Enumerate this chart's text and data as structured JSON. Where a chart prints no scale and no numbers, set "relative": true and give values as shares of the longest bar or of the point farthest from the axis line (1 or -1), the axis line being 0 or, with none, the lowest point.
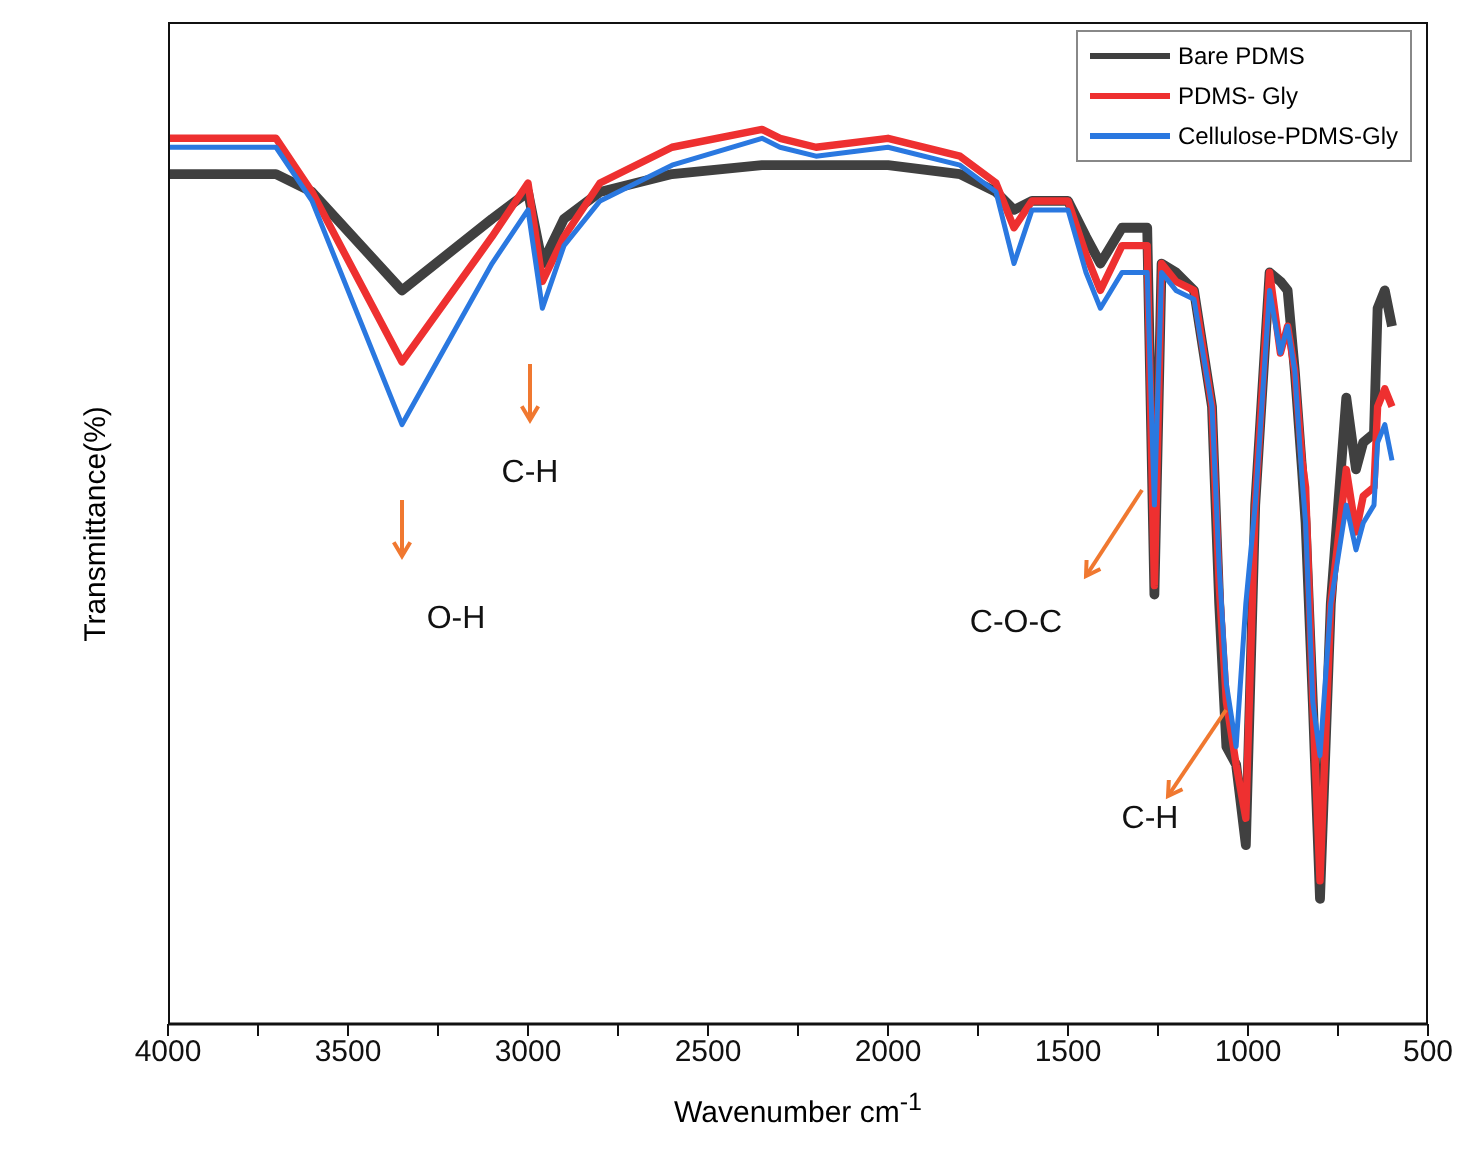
{
  "chart_data": {
    "type": "line",
    "xlabel": "Wavenumber cm$^{-1}$",
    "ylabel": "Transmittance(%)",
    "relative": true,
    "legend": "top right",
    "marker": "none",
    "line_style": "solid",
    "xlim": [
      4000,
      500
    ],
    "xticks": [
      4000,
      {
        "value": 3750,
        "label": null
      },
      3500,
      {
        "value": 3250,
        "label": null
      },
      3000,
      {
        "value": 2750,
        "label": null
      },
      2500,
      {
        "value": 2250,
        "label": null
      },
      2000,
      {
        "value": 1750,
        "label": null
      },
      1500,
      {
        "value": 1250,
        "label": null
      },
      1000,
      {
        "value": 750,
        "label": null
      },
      500
    ],
    "x": [
      4000,
      3700,
      3600,
      3350,
      3100,
      3000,
      2960,
      2900,
      2800,
      2600,
      2350,
      2300,
      2200,
      2000,
      1800,
      1700,
      1650,
      1600,
      1500,
      1450,
      1410,
      1350,
      1280,
      1260,
      1240,
      1200,
      1150,
      1100,
      1080,
      1060,
      1033,
      1006,
      980,
      940,
      910,
      890,
      870,
      850,
      840,
      820,
      800,
      770,
      727,
      700,
      680,
      650,
      640,
      620,
      600
    ],
    "series": [
      {
        "name": "Bare PDMS",
        "color": "#404040",
        "values": [
          0.95,
          0.95,
          0.93,
          0.82,
          0.9,
          0.93,
          0.85,
          0.9,
          0.93,
          0.95,
          0.96,
          0.96,
          0.96,
          0.96,
          0.95,
          0.93,
          0.91,
          0.92,
          0.92,
          0.88,
          0.85,
          0.89,
          0.89,
          0.48,
          0.85,
          0.84,
          0.82,
          0.69,
          0.47,
          0.31,
          0.29,
          0.2,
          0.58,
          0.84,
          0.83,
          0.82,
          0.73,
          0.62,
          0.56,
          0.36,
          0.14,
          0.47,
          0.7,
          0.62,
          0.65,
          0.66,
          0.8,
          0.82,
          0.78
        ]
      },
      {
        "name": "PDMS- Gly",
        "color": "#ee3030",
        "values": [
          0.99,
          0.99,
          0.93,
          0.74,
          0.88,
          0.94,
          0.83,
          0.88,
          0.94,
          0.98,
          1,
          0.99,
          0.98,
          0.99,
          0.97,
          0.94,
          0.89,
          0.92,
          0.92,
          0.86,
          0.82,
          0.87,
          0.87,
          0.49,
          0.85,
          0.83,
          0.82,
          0.69,
          0.49,
          0.36,
          0.29,
          0.23,
          0.58,
          0.84,
          0.75,
          0.78,
          0.73,
          0.63,
          0.6,
          0.36,
          0.16,
          0.47,
          0.62,
          0.55,
          0.59,
          0.6,
          0.69,
          0.71,
          0.69
        ]
      },
      {
        "name": "Cellulose-PDMS-Gly",
        "color": "#2a78e0",
        "values": [
          0.98,
          0.98,
          0.92,
          0.67,
          0.85,
          0.91,
          0.8,
          0.87,
          0.92,
          0.96,
          0.99,
          0.98,
          0.97,
          0.98,
          0.96,
          0.93,
          0.85,
          0.91,
          0.91,
          0.84,
          0.8,
          0.84,
          0.84,
          0.58,
          0.84,
          0.82,
          0.81,
          0.69,
          0.51,
          0.38,
          0.31,
          0.47,
          0.58,
          0.82,
          0.75,
          0.78,
          0.73,
          0.61,
          0.56,
          0.36,
          0.3,
          0.47,
          0.58,
          0.53,
          0.56,
          0.58,
          0.65,
          0.67,
          0.63
        ]
      }
    ],
    "annotations": [
      "O-H",
      "C-H",
      "C-O-C",
      "C-H"
    ]
  }
}
